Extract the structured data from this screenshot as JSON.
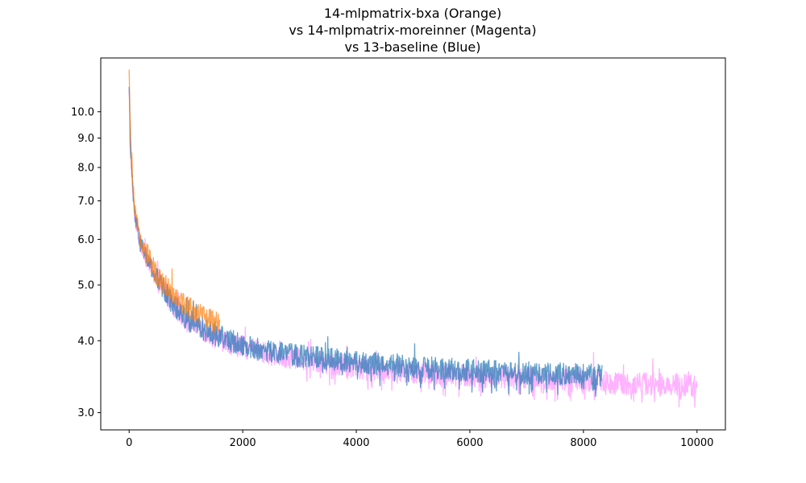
{
  "chart_data": {
    "type": "line",
    "title_lines": [
      "14-mlpmatrix-bxa (Orange)",
      "vs 14-mlpmatrix-moreinner (Magenta)",
      "vs 13-baseline (Blue)"
    ],
    "xlabel": "",
    "ylabel": "",
    "x_scale": "linear",
    "y_scale": "log",
    "xlim": [
      -500,
      10500
    ],
    "ylim": [
      2.8,
      12.4
    ],
    "x_ticks": [
      0,
      2000,
      4000,
      6000,
      8000,
      10000
    ],
    "y_ticks": [
      3.0,
      4.0,
      5.0,
      6.0,
      7.0,
      8.0,
      9.0,
      10.0
    ],
    "x_tick_labels": [
      "0",
      "2000",
      "4000",
      "6000",
      "8000",
      "10000"
    ],
    "y_tick_labels": [
      "3.0",
      "4.0",
      "5.0",
      "6.0",
      "7.0",
      "8.0",
      "9.0",
      "10.0"
    ],
    "grid": false,
    "legend": "none",
    "series": [
      {
        "color": "#ff66ff",
        "opacity": 0.5,
        "x": [
          0,
          20,
          50,
          80,
          100,
          150,
          200,
          300,
          400,
          500,
          600,
          700,
          800,
          900,
          1000,
          1200,
          1400,
          1600,
          1800,
          2000,
          2200,
          2500,
          3000,
          3500,
          4000,
          4500,
          5000,
          5500,
          6000,
          6500,
          7000,
          7500,
          8000,
          8330,
          8500,
          9000,
          9500,
          10000
        ],
        "y": [
          10.8,
          8.9,
          7.6,
          6.9,
          6.6,
          6.2,
          5.9,
          5.6,
          5.3,
          5.1,
          4.95,
          4.75,
          4.6,
          4.48,
          4.35,
          4.22,
          4.12,
          4.03,
          3.96,
          3.9,
          3.85,
          3.79,
          3.72,
          3.66,
          3.6,
          3.57,
          3.53,
          3.5,
          3.48,
          3.46,
          3.45,
          3.43,
          3.42,
          3.41,
          3.38,
          3.37,
          3.36,
          3.34
        ]
      },
      {
        "color": "#1f77b4",
        "opacity": 0.7,
        "x": [
          0,
          20,
          50,
          80,
          100,
          150,
          200,
          300,
          400,
          500,
          600,
          700,
          800,
          900,
          1000,
          1200,
          1400,
          1600,
          1800,
          2000,
          2200,
          2500,
          3000,
          3500,
          4000,
          4500,
          5000,
          5500,
          6000,
          6500,
          7000,
          7500,
          8000,
          8330
        ],
        "y": [
          10.7,
          8.9,
          7.6,
          6.9,
          6.6,
          6.2,
          5.9,
          5.6,
          5.3,
          5.1,
          4.95,
          4.75,
          4.6,
          4.5,
          4.38,
          4.25,
          4.15,
          4.07,
          4.0,
          3.94,
          3.88,
          3.83,
          3.77,
          3.72,
          3.68,
          3.64,
          3.61,
          3.58,
          3.56,
          3.54,
          3.52,
          3.51,
          3.5,
          3.49
        ]
      },
      {
        "color": "#ff7f0e",
        "opacity": 0.7,
        "x": [
          0,
          20,
          50,
          80,
          100,
          150,
          200,
          300,
          400,
          500,
          600,
          700,
          800,
          900,
          1000,
          1100,
          1200,
          1300,
          1400,
          1500,
          1600
        ],
        "y": [
          11.6,
          9.2,
          7.9,
          7.1,
          6.7,
          6.3,
          6.0,
          5.7,
          5.4,
          5.2,
          5.05,
          4.92,
          4.82,
          4.72,
          4.62,
          4.55,
          4.48,
          4.42,
          4.37,
          4.32,
          4.28
        ]
      }
    ]
  }
}
